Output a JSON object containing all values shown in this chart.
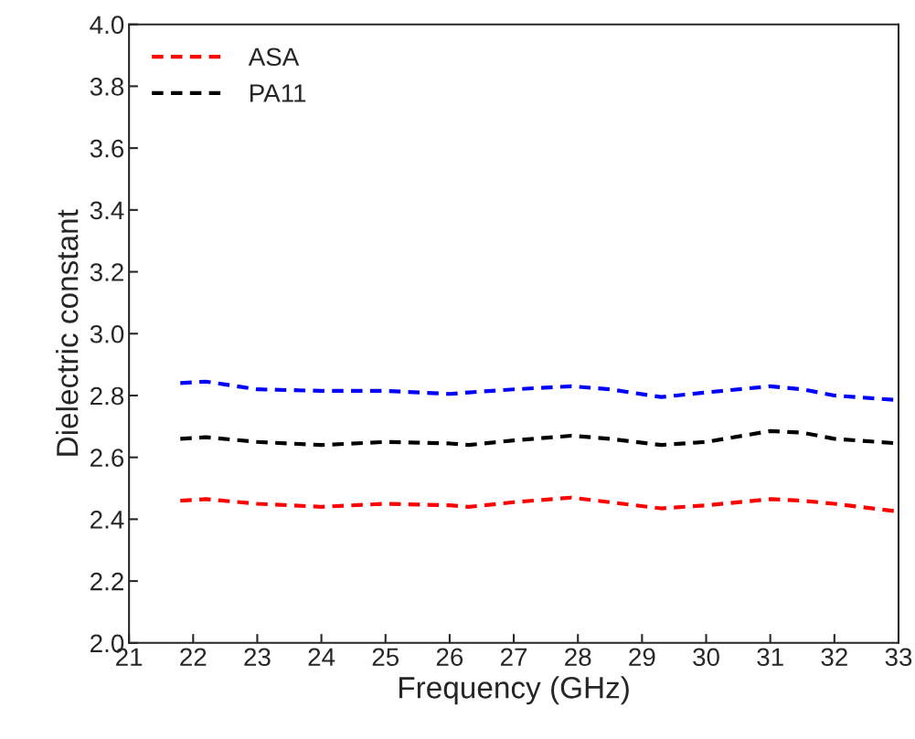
{
  "chart_data": {
    "type": "line",
    "xlabel": "Frequency (GHz)",
    "ylabel": "Dielectric constant",
    "x": [
      21.8,
      22.2,
      23,
      24,
      25,
      26,
      26.3,
      27,
      27.9,
      28.5,
      29.3,
      30,
      31,
      31.5,
      32,
      33
    ],
    "series": [
      {
        "name": "ASA",
        "color": "#ff0000",
        "values": [
          2.46,
          2.465,
          2.45,
          2.44,
          2.45,
          2.445,
          2.44,
          2.455,
          2.47,
          2.455,
          2.435,
          2.445,
          2.465,
          2.46,
          2.45,
          2.425
        ]
      },
      {
        "name": "PA11",
        "color": "#000000",
        "values": [
          2.66,
          2.665,
          2.65,
          2.64,
          2.65,
          2.645,
          2.64,
          2.655,
          2.67,
          2.66,
          2.64,
          2.65,
          2.685,
          2.68,
          2.66,
          2.645
        ]
      },
      {
        "color": "#0000ff",
        "values": [
          2.84,
          2.845,
          2.82,
          2.815,
          2.815,
          2.805,
          2.81,
          2.82,
          2.83,
          2.82,
          2.795,
          2.81,
          2.83,
          2.82,
          2.8,
          2.785
        ]
      }
    ],
    "xlim": [
      21,
      33
    ],
    "xticks": [
      21,
      22,
      23,
      24,
      25,
      26,
      27,
      28,
      29,
      30,
      31,
      32,
      33
    ],
    "ylim": [
      2.0,
      4.0
    ],
    "yticks": [
      {
        "value": 2.0,
        "label": "2.0"
      },
      {
        "value": 2.2,
        "label": "2.2"
      },
      {
        "value": 2.4,
        "label": "2.4"
      },
      {
        "value": 2.6,
        "label": "2.6"
      },
      {
        "value": 2.8,
        "label": "2.8"
      },
      {
        "value": 3.0,
        "label": "3.0"
      },
      {
        "value": 3.2,
        "label": "3.2"
      },
      {
        "value": 3.4,
        "label": "3.4"
      },
      {
        "value": 3.6,
        "label": "3.6"
      },
      {
        "value": 3.8,
        "label": "3.8"
      },
      {
        "value": 4.0,
        "label": "4.0"
      }
    ],
    "line_style": "dashed",
    "legend": "top left",
    "grid": false
  }
}
